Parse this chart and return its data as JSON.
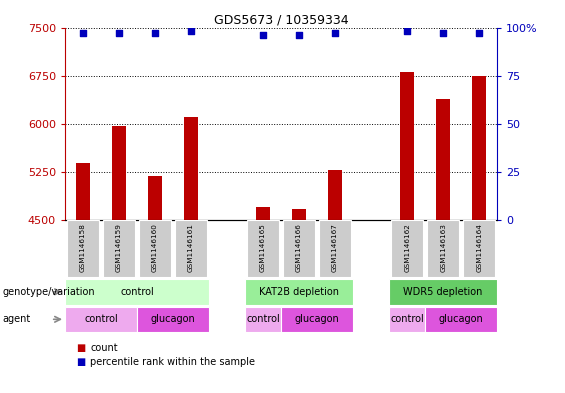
{
  "title": "GDS5673 / 10359334",
  "samples": [
    "GSM1146158",
    "GSM1146159",
    "GSM1146160",
    "GSM1146161",
    "GSM1146165",
    "GSM1146166",
    "GSM1146167",
    "GSM1146162",
    "GSM1146163",
    "GSM1146164"
  ],
  "counts": [
    5390,
    5960,
    5190,
    6110,
    4700,
    4670,
    5280,
    6800,
    6390,
    6750
  ],
  "percentiles": [
    97,
    97,
    97,
    98,
    96,
    96,
    97,
    98,
    97,
    97
  ],
  "ylim_left": [
    4500,
    7500
  ],
  "ylim_right": [
    0,
    100
  ],
  "yticks_left": [
    4500,
    5250,
    6000,
    6750,
    7500
  ],
  "yticks_right": [
    0,
    25,
    50,
    75,
    100
  ],
  "bar_color": "#bb0000",
  "dot_color": "#0000bb",
  "x_positions": [
    0,
    1,
    2,
    3,
    5,
    6,
    7,
    9,
    10,
    11
  ],
  "group_gaps": [
    3.5,
    8.0
  ],
  "xlim": [
    -0.5,
    11.5
  ],
  "genotype_groups": [
    {
      "label": "control",
      "xstart": -0.5,
      "xend": 3.5,
      "color": "#ccffcc"
    },
    {
      "label": "KAT2B depletion",
      "xstart": 4.5,
      "xend": 7.5,
      "color": "#99ee99"
    },
    {
      "label": "WDR5 depletion",
      "xstart": 8.5,
      "xend": 11.5,
      "color": "#66cc66"
    }
  ],
  "agent_groups": [
    {
      "label": "control",
      "xstart": -0.5,
      "xend": 1.5,
      "color": "#eeaaee"
    },
    {
      "label": "glucagon",
      "xstart": 1.5,
      "xend": 3.5,
      "color": "#dd55dd"
    },
    {
      "label": "control",
      "xstart": 4.5,
      "xend": 5.5,
      "color": "#eeaaee"
    },
    {
      "label": "glucagon",
      "xstart": 5.5,
      "xend": 7.5,
      "color": "#dd55dd"
    },
    {
      "label": "control",
      "xstart": 8.5,
      "xend": 9.5,
      "color": "#eeaaee"
    },
    {
      "label": "glucagon",
      "xstart": 9.5,
      "xend": 11.5,
      "color": "#dd55dd"
    }
  ],
  "legend_items": [
    {
      "label": "count",
      "color": "#bb0000"
    },
    {
      "label": "percentile rank within the sample",
      "color": "#0000bb"
    }
  ],
  "label_row1": "genotype/variation",
  "label_row2": "agent",
  "bar_color_left": "#bb0000",
  "right_axis_color": "#0000bb",
  "bg_color": "#ffffff",
  "sample_box_color": "#cccccc",
  "bar_width": 0.4
}
